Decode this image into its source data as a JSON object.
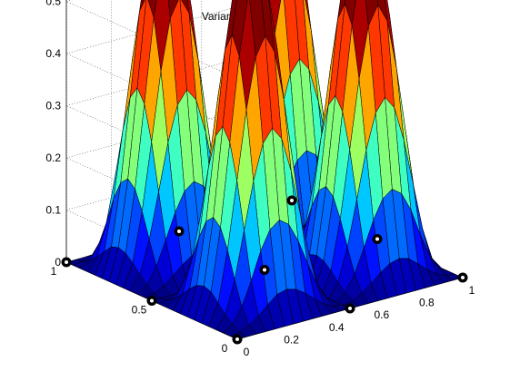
{
  "figure": {
    "title": "Variance de prediction"
  },
  "chart_data": {
    "type": "surface",
    "title": "Variance de prediction",
    "xlabel": "",
    "ylabel": "",
    "zlabel": "",
    "xlim": [
      0,
      1
    ],
    "ylim": [
      0,
      1
    ],
    "zlim": [
      0,
      0.55
    ],
    "grid": true,
    "colormap": "jet",
    "x_ticks": [
      "0",
      "0.2",
      "0.4",
      "0.6",
      "0.8",
      "1"
    ],
    "y_ticks": [
      "0",
      "0.5",
      "1"
    ],
    "z_ticks": [
      "0",
      "0.1",
      "0.2",
      "0.3",
      "0.4",
      "0.5"
    ],
    "surface_peak_value": 0.52,
    "surface_grid_steps": 24,
    "design_points": [
      {
        "x": 0,
        "y": 0,
        "z": 0
      },
      {
        "x": 0.5,
        "y": 0,
        "z": 0
      },
      {
        "x": 1,
        "y": 0,
        "z": 0
      },
      {
        "x": 0,
        "y": 0.5,
        "z": 0
      },
      {
        "x": 0.5,
        "y": 0.5,
        "z": 0
      },
      {
        "x": 1,
        "y": 0.5,
        "z": 0
      },
      {
        "x": 0,
        "y": 1,
        "z": 0
      },
      {
        "x": 0.5,
        "y": 1,
        "z": 0
      },
      {
        "x": 1,
        "y": 1,
        "z": 0
      }
    ]
  }
}
